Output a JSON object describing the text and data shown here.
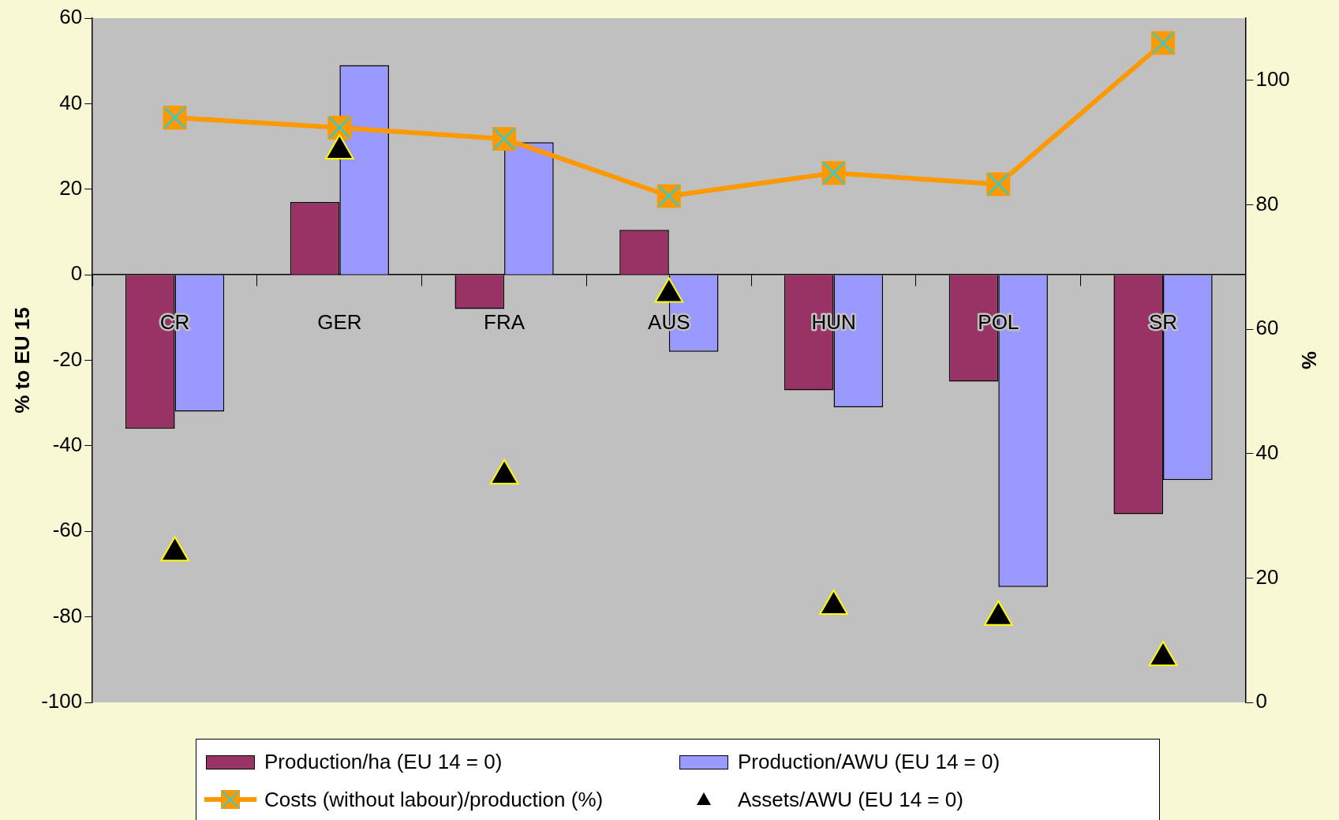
{
  "chart_data": {
    "type": "bar",
    "categories": [
      "CR",
      "GER",
      "FRA",
      "AUS",
      "HUN",
      "POL",
      "SR"
    ],
    "ylabel": "% to EU 15",
    "y2label": "%",
    "ylim": [
      -100,
      60
    ],
    "yticks": [
      -100,
      -80,
      -60,
      -40,
      -20,
      0,
      20,
      40,
      60
    ],
    "y2lim": [
      0,
      110
    ],
    "y2ticks": [
      0,
      20,
      40,
      60,
      80,
      100
    ],
    "grid": false,
    "legend": "bottom",
    "series": [
      {
        "name": "Production/ha (EU 14 = 0)",
        "color": "#993366",
        "values": [
          -36,
          17,
          -8,
          10.5,
          -27,
          -25,
          -56
        ]
      },
      {
        "name": "Production/AWU (EU 14 = 0)",
        "color": "#9999ff",
        "values": [
          -32,
          49,
          31,
          -18,
          -31,
          -73,
          -48
        ]
      },
      {
        "name": "Costs (without labour)/production (%)",
        "type": "line",
        "axis": "y2",
        "marker": "square",
        "color": "#ff9900",
        "values": [
          94,
          92.4,
          90.6,
          81.4,
          85.1,
          83.3,
          106
        ]
      },
      {
        "name": "Assets/AWU (EU 14 = 0)",
        "type": "scatter",
        "marker": "triangle",
        "color": "#000000",
        "x": [
          "CR",
          "GER",
          "FRA",
          "AUS",
          "HUN",
          "POL",
          "SR"
        ],
        "values": [
          -65,
          29,
          -47,
          -4.5,
          -77.5,
          -80,
          -89.5
        ]
      }
    ]
  }
}
